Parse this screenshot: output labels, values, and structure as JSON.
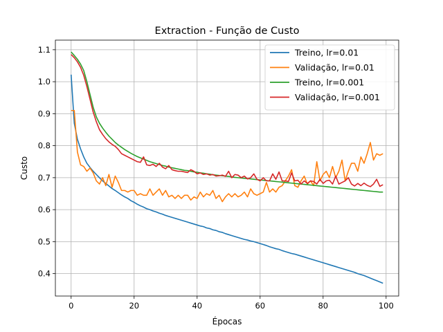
{
  "chart_data": {
    "type": "line",
    "title": "Extraction - Função de Custo",
    "xlabel": "Épocas",
    "ylabel": "Custo",
    "xlim": [
      -5,
      104
    ],
    "ylim": [
      0.33,
      1.13
    ],
    "xticks": [
      0,
      20,
      40,
      60,
      80,
      100
    ],
    "yticks": [
      0.4,
      0.5,
      0.6,
      0.7,
      0.8,
      0.9,
      1.0,
      1.1
    ],
    "grid": true,
    "legend_position": "top-right",
    "series": [
      {
        "name": "Treino, lr=0.01",
        "color": "#1f77b4",
        "values": [
          1.022,
          0.87,
          0.82,
          0.79,
          0.765,
          0.745,
          0.732,
          0.72,
          0.71,
          0.7,
          0.69,
          0.682,
          0.674,
          0.666,
          0.66,
          0.653,
          0.646,
          0.64,
          0.635,
          0.628,
          0.623,
          0.617,
          0.612,
          0.608,
          0.603,
          0.6,
          0.596,
          0.593,
          0.589,
          0.586,
          0.582,
          0.579,
          0.576,
          0.573,
          0.57,
          0.567,
          0.564,
          0.561,
          0.558,
          0.555,
          0.552,
          0.549,
          0.547,
          0.543,
          0.541,
          0.537,
          0.535,
          0.531,
          0.529,
          0.525,
          0.522,
          0.519,
          0.516,
          0.513,
          0.51,
          0.507,
          0.505,
          0.502,
          0.5,
          0.497,
          0.494,
          0.491,
          0.488,
          0.484,
          0.481,
          0.478,
          0.476,
          0.472,
          0.469,
          0.466,
          0.463,
          0.461,
          0.458,
          0.455,
          0.452,
          0.449,
          0.446,
          0.443,
          0.44,
          0.437,
          0.434,
          0.431,
          0.428,
          0.425,
          0.422,
          0.419,
          0.416,
          0.413,
          0.41,
          0.407,
          0.404,
          0.4,
          0.397,
          0.394,
          0.39,
          0.386,
          0.382,
          0.378,
          0.374,
          0.37
        ]
      },
      {
        "name": "Validação, lr=0.01",
        "color": "#ff7f0e",
        "values": [
          0.91,
          0.91,
          0.78,
          0.74,
          0.735,
          0.72,
          0.73,
          0.715,
          0.69,
          0.68,
          0.7,
          0.675,
          0.71,
          0.67,
          0.705,
          0.685,
          0.66,
          0.66,
          0.655,
          0.66,
          0.66,
          0.645,
          0.65,
          0.645,
          0.645,
          0.665,
          0.645,
          0.655,
          0.665,
          0.645,
          0.66,
          0.64,
          0.645,
          0.635,
          0.645,
          0.635,
          0.645,
          0.645,
          0.63,
          0.64,
          0.635,
          0.655,
          0.64,
          0.65,
          0.645,
          0.66,
          0.635,
          0.645,
          0.625,
          0.64,
          0.65,
          0.64,
          0.65,
          0.64,
          0.645,
          0.655,
          0.64,
          0.665,
          0.65,
          0.645,
          0.65,
          0.655,
          0.685,
          0.655,
          0.665,
          0.655,
          0.67,
          0.675,
          0.69,
          0.705,
          0.725,
          0.675,
          0.67,
          0.69,
          0.705,
          0.68,
          0.69,
          0.675,
          0.75,
          0.69,
          0.71,
          0.72,
          0.7,
          0.735,
          0.7,
          0.72,
          0.755,
          0.69,
          0.72,
          0.745,
          0.745,
          0.72,
          0.765,
          0.745,
          0.775,
          0.81,
          0.755,
          0.775,
          0.77,
          0.775
        ]
      },
      {
        "name": "Treino, lr=0.001",
        "color": "#2ca02c",
        "values": [
          1.093,
          1.082,
          1.07,
          1.055,
          1.035,
          1.0,
          0.96,
          0.92,
          0.89,
          0.87,
          0.855,
          0.842,
          0.83,
          0.82,
          0.81,
          0.802,
          0.795,
          0.788,
          0.782,
          0.776,
          0.771,
          0.766,
          0.762,
          0.758,
          0.754,
          0.75,
          0.747,
          0.744,
          0.741,
          0.738,
          0.736,
          0.733,
          0.731,
          0.729,
          0.727,
          0.725,
          0.723,
          0.722,
          0.72,
          0.718,
          0.717,
          0.715,
          0.714,
          0.712,
          0.711,
          0.709,
          0.708,
          0.707,
          0.706,
          0.705,
          0.704,
          0.702,
          0.701,
          0.7,
          0.699,
          0.698,
          0.697,
          0.696,
          0.695,
          0.694,
          0.693,
          0.692,
          0.691,
          0.69,
          0.689,
          0.688,
          0.687,
          0.686,
          0.685,
          0.684,
          0.683,
          0.682,
          0.681,
          0.68,
          0.679,
          0.678,
          0.677,
          0.676,
          0.675,
          0.674,
          0.673,
          0.672,
          0.671,
          0.67,
          0.669,
          0.668,
          0.667,
          0.666,
          0.665,
          0.664,
          0.663,
          0.662,
          0.661,
          0.66,
          0.659,
          0.658,
          0.657,
          0.656,
          0.655,
          0.655
        ]
      },
      {
        "name": "Validação, lr=0.001",
        "color": "#d62728",
        "values": [
          1.085,
          1.075,
          1.062,
          1.045,
          1.02,
          0.985,
          0.945,
          0.905,
          0.875,
          0.85,
          0.835,
          0.822,
          0.812,
          0.804,
          0.798,
          0.788,
          0.775,
          0.77,
          0.765,
          0.76,
          0.755,
          0.75,
          0.748,
          0.765,
          0.74,
          0.738,
          0.742,
          0.735,
          0.745,
          0.733,
          0.728,
          0.738,
          0.725,
          0.722,
          0.72,
          0.72,
          0.718,
          0.716,
          0.725,
          0.72,
          0.712,
          0.715,
          0.71,
          0.712,
          0.708,
          0.71,
          0.705,
          0.706,
          0.708,
          0.704,
          0.72,
          0.7,
          0.71,
          0.708,
          0.7,
          0.705,
          0.696,
          0.7,
          0.712,
          0.695,
          0.69,
          0.7,
          0.69,
          0.69,
          0.712,
          0.695,
          0.718,
          0.69,
          0.69,
          0.688,
          0.715,
          0.69,
          0.692,
          0.68,
          0.69,
          0.682,
          0.69,
          0.688,
          0.68,
          0.695,
          0.682,
          0.69,
          0.692,
          0.68,
          0.705,
          0.68,
          0.685,
          0.69,
          0.7,
          0.68,
          0.674,
          0.682,
          0.675,
          0.683,
          0.676,
          0.672,
          0.68,
          0.695,
          0.673,
          0.678
        ]
      }
    ]
  }
}
